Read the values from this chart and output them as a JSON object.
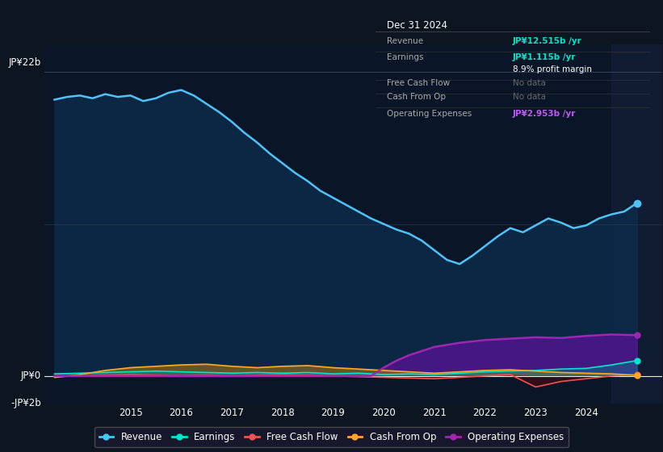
{
  "bg_color": "#0d1520",
  "chart_area_color": "#0a1628",
  "revenue_color": "#4fc3f7",
  "earnings_color": "#00e5cc",
  "fcf_color": "#ef5350",
  "cashfromop_color": "#ffa726",
  "opex_color": "#9c27b0",
  "ylim": [
    -2,
    24
  ],
  "xlim": [
    2013.3,
    2025.5
  ],
  "xticks": [
    2015,
    2016,
    2017,
    2018,
    2019,
    2020,
    2021,
    2022,
    2023,
    2024
  ],
  "info_revenue_color": "#00e5cc",
  "info_earnings_color": "#00e5cc",
  "info_opex_color": "#bf5af2",
  "revenue": {
    "x": [
      2013.5,
      2013.75,
      2014.0,
      2014.25,
      2014.5,
      2014.75,
      2015.0,
      2015.25,
      2015.5,
      2015.75,
      2016.0,
      2016.25,
      2016.5,
      2016.75,
      2017.0,
      2017.25,
      2017.5,
      2017.75,
      2018.0,
      2018.25,
      2018.5,
      2018.75,
      2019.0,
      2019.25,
      2019.5,
      2019.75,
      2020.0,
      2020.25,
      2020.5,
      2020.75,
      2021.0,
      2021.25,
      2021.5,
      2021.75,
      2022.0,
      2022.25,
      2022.5,
      2022.75,
      2023.0,
      2023.25,
      2023.5,
      2023.75,
      2024.0,
      2024.25,
      2024.5,
      2024.75,
      2025.0
    ],
    "y": [
      20.0,
      20.2,
      20.3,
      20.1,
      20.4,
      20.2,
      20.3,
      19.9,
      20.1,
      20.5,
      20.7,
      20.3,
      19.7,
      19.1,
      18.4,
      17.6,
      16.9,
      16.1,
      15.4,
      14.7,
      14.1,
      13.4,
      12.9,
      12.4,
      11.9,
      11.4,
      11.0,
      10.6,
      10.3,
      9.8,
      9.1,
      8.4,
      8.1,
      8.7,
      9.4,
      10.1,
      10.7,
      10.4,
      10.9,
      11.4,
      11.1,
      10.7,
      10.9,
      11.4,
      11.7,
      11.9,
      12.515
    ]
  },
  "earnings": {
    "x": [
      2013.5,
      2014.0,
      2014.5,
      2015.0,
      2015.5,
      2016.0,
      2016.5,
      2017.0,
      2017.5,
      2018.0,
      2018.5,
      2019.0,
      2019.5,
      2020.0,
      2020.5,
      2021.0,
      2021.5,
      2022.0,
      2022.5,
      2023.0,
      2023.5,
      2024.0,
      2024.5,
      2025.0
    ],
    "y": [
      0.15,
      0.2,
      0.25,
      0.3,
      0.35,
      0.3,
      0.25,
      0.2,
      0.25,
      0.2,
      0.25,
      0.15,
      0.2,
      0.1,
      0.15,
      0.1,
      0.2,
      0.3,
      0.35,
      0.4,
      0.5,
      0.55,
      0.8,
      1.115
    ]
  },
  "fcf": {
    "x": [
      2013.5,
      2014.0,
      2014.5,
      2015.0,
      2015.5,
      2016.0,
      2016.5,
      2017.0,
      2017.5,
      2018.0,
      2018.5,
      2019.0,
      2019.5,
      2020.0,
      2020.5,
      2021.0,
      2021.5,
      2022.0,
      2022.5,
      2023.0,
      2023.5,
      2024.0,
      2024.5,
      2025.0
    ],
    "y": [
      -0.05,
      0.0,
      0.05,
      0.1,
      0.05,
      0.0,
      0.05,
      0.0,
      0.05,
      0.1,
      0.05,
      0.0,
      -0.05,
      -0.1,
      -0.15,
      -0.2,
      -0.1,
      0.0,
      0.1,
      -0.8,
      -0.4,
      -0.2,
      0.0,
      0.1
    ]
  },
  "cashfromop": {
    "x": [
      2013.5,
      2014.0,
      2014.5,
      2015.0,
      2015.5,
      2016.0,
      2016.5,
      2017.0,
      2017.5,
      2018.0,
      2018.5,
      2019.0,
      2019.5,
      2020.0,
      2020.5,
      2021.0,
      2021.5,
      2022.0,
      2022.5,
      2023.0,
      2023.5,
      2024.0,
      2024.5,
      2025.0
    ],
    "y": [
      -0.1,
      0.1,
      0.4,
      0.6,
      0.7,
      0.8,
      0.85,
      0.7,
      0.6,
      0.7,
      0.75,
      0.6,
      0.5,
      0.4,
      0.3,
      0.2,
      0.3,
      0.4,
      0.45,
      0.35,
      0.25,
      0.2,
      0.15,
      0.05
    ]
  },
  "opex": {
    "x": [
      2013.5,
      2014.0,
      2014.5,
      2015.0,
      2015.5,
      2016.0,
      2016.5,
      2017.0,
      2017.5,
      2018.0,
      2018.5,
      2019.0,
      2019.5,
      2019.75,
      2020.0,
      2020.25,
      2020.5,
      2020.75,
      2021.0,
      2021.5,
      2022.0,
      2022.5,
      2023.0,
      2023.5,
      2024.0,
      2024.5,
      2025.0
    ],
    "y": [
      0.0,
      0.0,
      0.0,
      0.0,
      0.0,
      0.0,
      0.0,
      0.0,
      0.0,
      0.0,
      0.0,
      0.0,
      0.0,
      0.0,
      0.6,
      1.1,
      1.5,
      1.8,
      2.1,
      2.4,
      2.6,
      2.7,
      2.8,
      2.75,
      2.9,
      3.0,
      2.953
    ]
  },
  "shaded_start": 2024.5
}
